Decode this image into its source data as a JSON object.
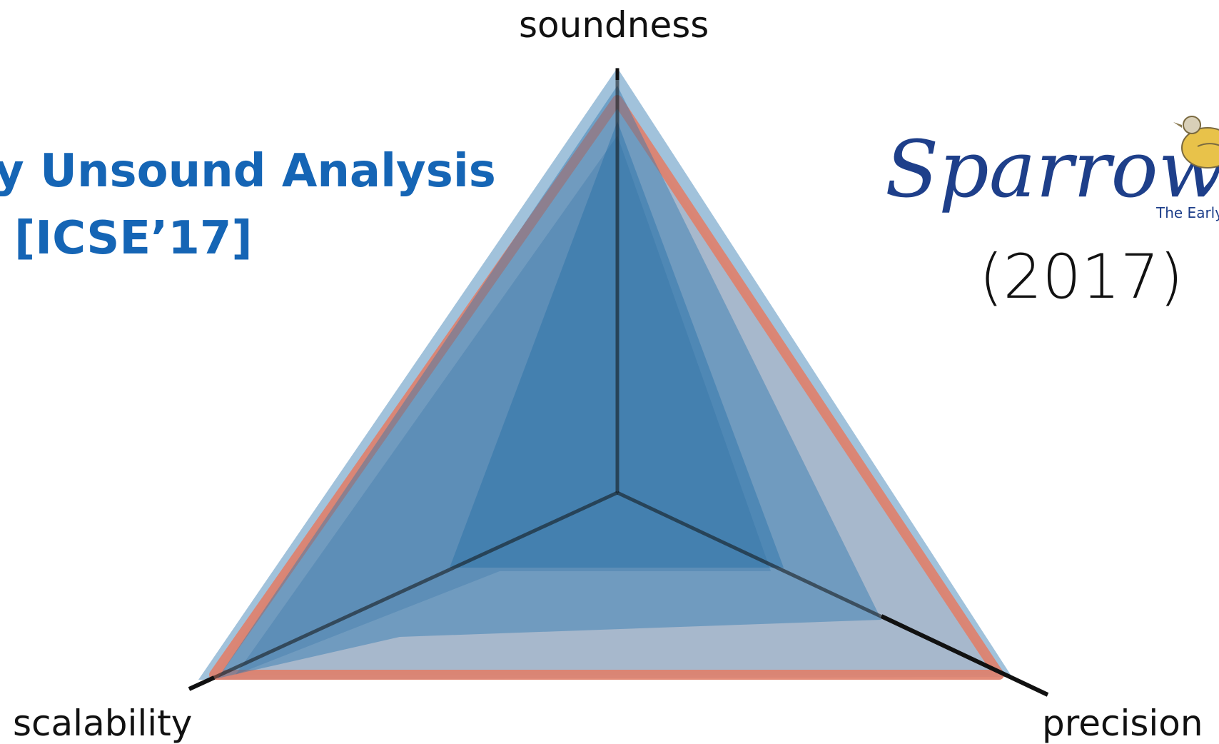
{
  "axes": {
    "top": "soundness",
    "left": "scalability",
    "right": "precision"
  },
  "paper": {
    "line1": "y Unsound Analysis",
    "line2": "[ICSE’17]"
  },
  "tool": {
    "logo_text": "Sparrow",
    "logo_tagline": "The Early",
    "year": "(2017)"
  },
  "colors": {
    "blue_fill": "#2f78b0",
    "red_outline": "#e0806a",
    "title_blue": "#1565b5"
  }
}
